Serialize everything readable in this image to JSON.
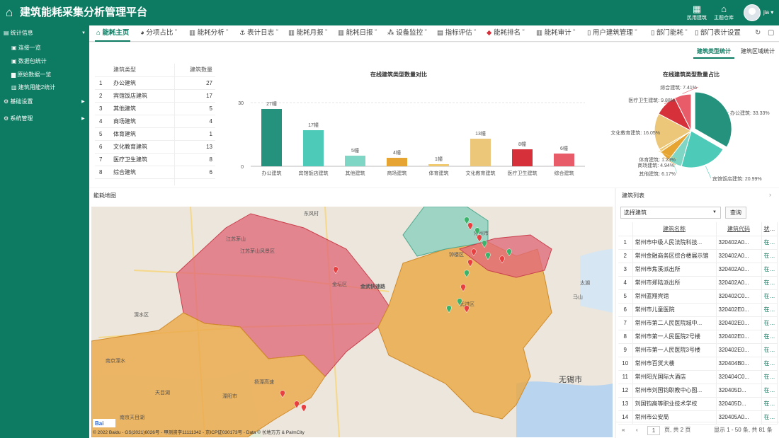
{
  "header": {
    "title": "建筑能耗采集分析管理平台",
    "btn_civil": "民用建筑",
    "btn_theme": "主题仓库",
    "user": "jia"
  },
  "sidebar": {
    "menu_stats": "统计信息",
    "items": [
      "连接一览",
      "数据包统计",
      "原始数据一览",
      "建筑用能2统计"
    ],
    "menu_base": "基础设置",
    "menu_sys": "系统管理"
  },
  "tabs": [
    "能耗主页",
    "分项占比",
    "能耗分析",
    "表计日志",
    "能耗月报",
    "能耗日报",
    "设备监控",
    "指标评估",
    "能耗排名",
    "能耗审计",
    "用户建筑管理",
    "部门能耗",
    "部门表计设置"
  ],
  "subtabs": {
    "type": "建筑类型统计",
    "region": "建筑区域统计"
  },
  "type_table": {
    "header": {
      "type": "建筑类型",
      "count": "建筑数量"
    },
    "rows": [
      [
        "1",
        "办公建筑",
        "27"
      ],
      [
        "2",
        "宾馆饭店建筑",
        "17"
      ],
      [
        "3",
        "其他建筑",
        "5"
      ],
      [
        "4",
        "商场建筑",
        "4"
      ],
      [
        "5",
        "体育建筑",
        "1"
      ],
      [
        "6",
        "文化教育建筑",
        "13"
      ],
      [
        "7",
        "医疗卫生建筑",
        "8"
      ],
      [
        "8",
        "综合建筑",
        "6"
      ]
    ]
  },
  "bar_title": "在线建筑类型数量对比",
  "pie_title": "在线建筑类型数量占比",
  "chart_data": [
    {
      "type": "bar",
      "title": "在线建筑类型数量对比",
      "categories": [
        "办公建筑",
        "宾馆饭店建筑",
        "其他建筑",
        "商场建筑",
        "体育建筑",
        "文化教育建筑",
        "医疗卫生建筑",
        "综合建筑"
      ],
      "values": [
        27,
        17,
        5,
        4,
        1,
        13,
        8,
        6
      ],
      "data_labels": [
        "27幢",
        "17幢",
        "5幢",
        "4幢",
        "1幢",
        "13幢",
        "8幢",
        "6幢"
      ],
      "ylim": [
        0,
        30
      ],
      "yticks": [
        "0",
        "30"
      ],
      "colors": [
        "#25927e",
        "#4ecab8",
        "#7fd6c4",
        "#e6a433",
        "#f0c96f",
        "#ecc77a",
        "#d6303b",
        "#e85b68"
      ]
    },
    {
      "type": "pie",
      "title": "在线建筑类型数量占比",
      "slices": [
        {
          "label": "办公建筑: 33.33%",
          "value": 33.33,
          "color": "#25927e"
        },
        {
          "label": "宾馆饭店建筑: 20.99%",
          "value": 20.99,
          "color": "#4ecab8"
        },
        {
          "label": "其他建筑: 6.17%",
          "value": 6.17,
          "color": "#7fd6c4"
        },
        {
          "label": "商场建筑: 4.94%",
          "value": 4.94,
          "color": "#e6a433"
        },
        {
          "label": "体育建筑: 1.23%",
          "value": 1.23,
          "color": "#f0c96f"
        },
        {
          "label": "文化教育建筑: 16.05%",
          "value": 16.05,
          "color": "#ecc77a"
        },
        {
          "label": "医疗卫生建筑: 9.88%",
          "value": 9.88,
          "color": "#d6303b"
        },
        {
          "label": "综合建筑: 7.41%",
          "value": 7.41,
          "color": "#e85b68"
        }
      ]
    }
  ],
  "map": {
    "title": "能耗地图",
    "copyright": "© 2022 Baidu - GS(2021)6026号 - 甲测资字11111342 - 京ICP证030173号 - Data © 长地万方 & PalmCity",
    "labels": [
      "江苏茅山",
      "东风村",
      "江苏茅山风景区",
      "金坛区",
      "金武快速路",
      "钟楼区",
      "武进区",
      "溧水区",
      "溧阳市",
      "无锡市",
      "扬溧高速",
      "常州市",
      "南京天目湖",
      "太湖",
      "马山",
      "南京溧水",
      "天目湖"
    ]
  },
  "list": {
    "title": "建筑列表",
    "select_placeholder": "选择建筑",
    "query": "查询",
    "headers": [
      "建筑名称",
      "建筑代码",
      "状态"
    ],
    "rows": [
      [
        "1",
        "常州市中级人民法院科技...",
        "320402A0...",
        "在线"
      ],
      [
        "2",
        "常州金融商务区综合楼展示馆",
        "320402A0...",
        "在线"
      ],
      [
        "3",
        "常州市焦溪派出所",
        "320402A0...",
        "在线"
      ],
      [
        "4",
        "常州市郑陆派出所",
        "320402A0...",
        "在线"
      ],
      [
        "5",
        "常州蓝翔宾馆",
        "320402C0...",
        "在线"
      ],
      [
        "6",
        "常州市儿童医院",
        "320402E0...",
        "在线"
      ],
      [
        "7",
        "常州市第二人民医院城中...",
        "320402E0...",
        "在线"
      ],
      [
        "8",
        "常州市第一人民医院2号楼",
        "320402E0...",
        "在线"
      ],
      [
        "9",
        "常州市第一人民医院3号楼",
        "320402E0...",
        "在线"
      ],
      [
        "10",
        "常州市百货大楼",
        "320404B0...",
        "在线"
      ],
      [
        "11",
        "常州阳光国际大酒店",
        "320404C0...",
        "在线"
      ],
      [
        "12",
        "常州市刘国钧职教中心图...",
        "320405D...",
        "在线"
      ],
      [
        "13",
        "刘国钧高等职业技术学校",
        "320405D...",
        "在线"
      ],
      [
        "14",
        "常州市公安局",
        "320405A0...",
        "在线"
      ]
    ],
    "pager": {
      "page": "1",
      "of": "页, 共 2 页",
      "summary": "显示 1 - 50 条, 共 81 条"
    }
  }
}
